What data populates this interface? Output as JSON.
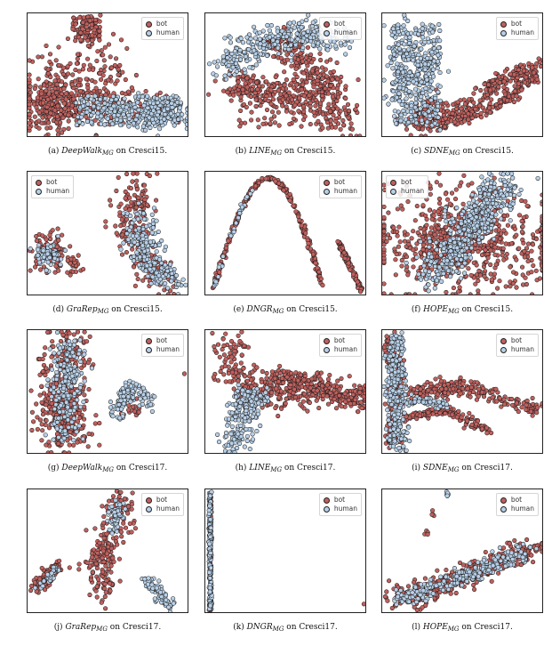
{
  "legend": {
    "bot": "bot",
    "human": "human"
  },
  "colors": {
    "bot": "#c0605d",
    "human": "#b8d0e8",
    "edge": "#1e1e1e"
  },
  "chart_data": [
    {
      "type": "scatter",
      "caption": {
        "label": "(a)",
        "method": "DeepWalk",
        "sub": "MG",
        "dataset": "on Cresci15."
      },
      "series": [
        {
          "name": "bot"
        },
        {
          "name": "human"
        }
      ],
      "legend_position": "top-right"
    },
    {
      "type": "scatter",
      "caption": {
        "label": "(b)",
        "method": "LINE",
        "sub": "MG",
        "dataset": "on Cresci15."
      },
      "series": [
        {
          "name": "bot"
        },
        {
          "name": "human"
        }
      ],
      "legend_position": "top-right"
    },
    {
      "type": "scatter",
      "caption": {
        "label": "(c)",
        "method": "SDNE",
        "sub": "MG",
        "dataset": "on Cresci15."
      },
      "series": [
        {
          "name": "bot"
        },
        {
          "name": "human"
        }
      ],
      "legend_position": "top-right"
    },
    {
      "type": "scatter",
      "caption": {
        "label": "(d)",
        "method": "GraRep",
        "sub": "MG",
        "dataset": "on Cresci15."
      },
      "series": [
        {
          "name": "bot"
        },
        {
          "name": "human"
        }
      ],
      "legend_position": "top-left"
    },
    {
      "type": "scatter",
      "caption": {
        "label": "(e)",
        "method": "DNGR",
        "sub": "MG",
        "dataset": "on Cresci15."
      },
      "series": [
        {
          "name": "bot"
        },
        {
          "name": "human"
        }
      ],
      "legend_position": "top-right"
    },
    {
      "type": "scatter",
      "caption": {
        "label": "(f)",
        "method": "HOPE",
        "sub": "MG",
        "dataset": "on Cresci15."
      },
      "series": [
        {
          "name": "bot"
        },
        {
          "name": "human"
        }
      ],
      "legend_position": "top-left"
    },
    {
      "type": "scatter",
      "caption": {
        "label": "(g)",
        "method": "DeepWalk",
        "sub": "MG",
        "dataset": "on Cresci17."
      },
      "series": [
        {
          "name": "bot"
        },
        {
          "name": "human"
        }
      ],
      "legend_position": "top-right"
    },
    {
      "type": "scatter",
      "caption": {
        "label": "(h)",
        "method": "LINE",
        "sub": "MG",
        "dataset": "on Cresci17."
      },
      "series": [
        {
          "name": "bot"
        },
        {
          "name": "human"
        }
      ],
      "legend_position": "top-right"
    },
    {
      "type": "scatter",
      "caption": {
        "label": "(i)",
        "method": "SDNE",
        "sub": "MG",
        "dataset": "on Cresci17."
      },
      "series": [
        {
          "name": "bot"
        },
        {
          "name": "human"
        }
      ],
      "legend_position": "top-right"
    },
    {
      "type": "scatter",
      "caption": {
        "label": "(j)",
        "method": "GraRep",
        "sub": "MG",
        "dataset": "on Cresci17."
      },
      "series": [
        {
          "name": "bot"
        },
        {
          "name": "human"
        }
      ],
      "legend_position": "top-right"
    },
    {
      "type": "scatter",
      "caption": {
        "label": "(k)",
        "method": "DNGR",
        "sub": "MG",
        "dataset": "on Cresci17."
      },
      "series": [
        {
          "name": "bot"
        },
        {
          "name": "human"
        }
      ],
      "legend_position": "top-right"
    },
    {
      "type": "scatter",
      "caption": {
        "label": "(l)",
        "method": "HOPE",
        "sub": "MG",
        "dataset": "on Cresci17."
      },
      "series": [
        {
          "name": "bot"
        },
        {
          "name": "human"
        }
      ],
      "legend_position": "top-right"
    }
  ]
}
